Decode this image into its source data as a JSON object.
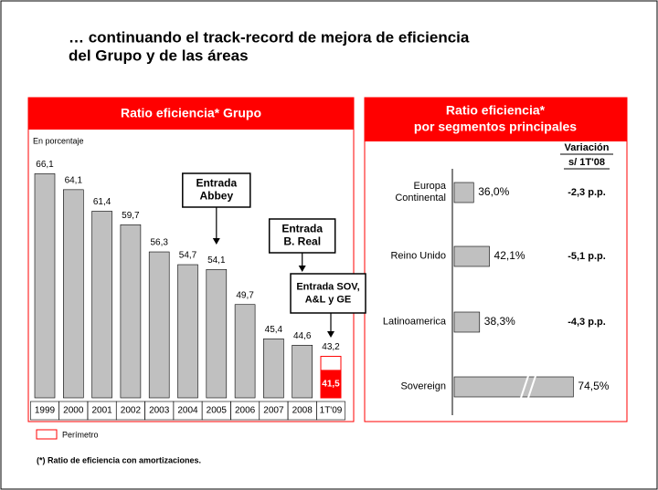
{
  "title_lines": [
    "… continuando el  track-record de mejora de eficiencia",
    "del Grupo y de las áreas"
  ],
  "chart_data": [
    {
      "type": "bar",
      "title": "Ratio eficiencia* Grupo",
      "subtitle": "En porcentaje",
      "categories": [
        "1999",
        "2000",
        "2001",
        "2002",
        "2003",
        "2004",
        "2005",
        "2006",
        "2007",
        "2008",
        "1T'09"
      ],
      "values": [
        66.1,
        64.1,
        61.4,
        59.7,
        56.3,
        54.7,
        54.1,
        49.7,
        45.4,
        44.6,
        43.2
      ],
      "value_labels": [
        "66,1",
        "64,1",
        "61,4",
        "59,7",
        "56,3",
        "54,7",
        "54,1",
        "49,7",
        "45,4",
        "44,6",
        "43,2"
      ],
      "color": "#c0c0c0",
      "inner_values": [
        null,
        null,
        null,
        null,
        null,
        null,
        null,
        null,
        null,
        null,
        41.5
      ],
      "inner_value_labels": [
        null,
        null,
        null,
        null,
        null,
        null,
        null,
        null,
        null,
        null,
        "41,5"
      ],
      "inner_color": "#ff0000",
      "ylim": [
        38,
        67
      ],
      "annotations": [
        {
          "lines": [
            "Entrada",
            "Abbey"
          ],
          "category": 6
        },
        {
          "lines": [
            "Entrada",
            "B. Real"
          ],
          "category": 9
        },
        {
          "lines": [
            "Entrada SOV,",
            "A&L y GE"
          ],
          "category": 10
        }
      ],
      "legend": {
        "label": "Perímetro",
        "color": "#ff0000"
      }
    },
    {
      "type": "hbar",
      "title_lines": [
        "Ratio eficiencia*",
        "por segmentos principales"
      ],
      "categories": [
        "Europa Continental",
        "Reino Unido",
        "Latinoamerica",
        "Sovereign"
      ],
      "values": [
        36.0,
        42.1,
        38.3,
        74.5
      ],
      "value_labels": [
        "36,0%",
        "42,1%",
        "38,3%",
        "74,5%"
      ],
      "color": "#c0c0c0",
      "xlim": [
        28.5,
        80
      ],
      "change_header": [
        "Variación",
        "s/ 1T'08"
      ],
      "changes": [
        "-2,3 p.p.",
        "-5,1 p.p.",
        "-4,3 p.p.",
        null
      ]
    }
  ],
  "footnote": "(*) Ratio de eficiencia con amortizaciones."
}
